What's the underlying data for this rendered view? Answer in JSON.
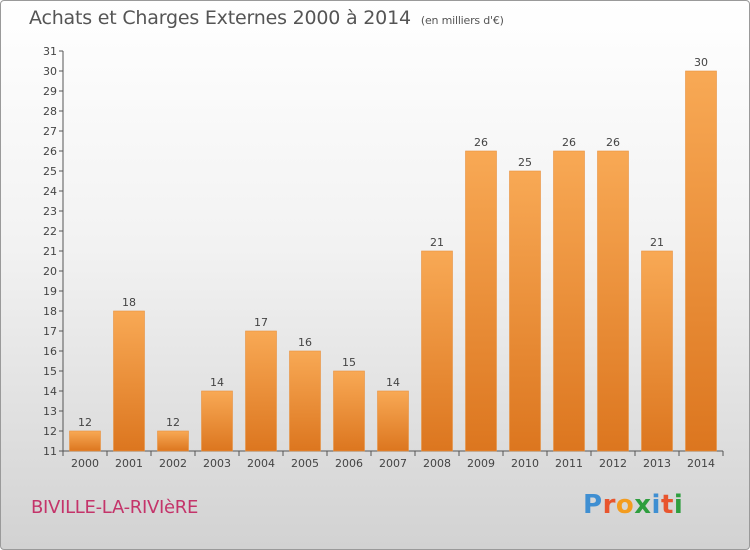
{
  "header": {
    "title": "Achats et Charges Externes 2000 à 2014",
    "unit": "(en milliers d'€)"
  },
  "footer": {
    "city": "BIVILLE-LA-RIVIèRE",
    "brand_letters": [
      "P",
      "r",
      "o",
      "x",
      "i",
      "t",
      "i"
    ],
    "brand_colors": [
      "#3f8fd2",
      "#e8552e",
      "#f39c1f",
      "#2e9e3e",
      "#3f8fd2",
      "#e8552e",
      "#2e9e3e"
    ]
  },
  "chart_data": {
    "type": "bar",
    "title": "Achats et Charges Externes 2000 à 2014",
    "subtitle": "(en milliers d'€)",
    "categories": [
      "2000",
      "2001",
      "2002",
      "2003",
      "2004",
      "2005",
      "2006",
      "2007",
      "2008",
      "2009",
      "2010",
      "2011",
      "2012",
      "2013",
      "2014"
    ],
    "values": [
      12,
      18,
      12,
      14,
      17,
      16,
      15,
      14,
      21,
      26,
      25,
      26,
      26,
      21,
      30
    ],
    "ylim": [
      11,
      31
    ],
    "yticks": [
      11,
      12,
      13,
      14,
      15,
      16,
      17,
      18,
      19,
      20,
      21,
      22,
      23,
      24,
      25,
      26,
      27,
      28,
      29,
      30,
      31
    ],
    "xlabel": "",
    "ylabel": "",
    "grid": false,
    "bar_color": "#f5a04a",
    "bar_color_dark": "#d8741c"
  }
}
